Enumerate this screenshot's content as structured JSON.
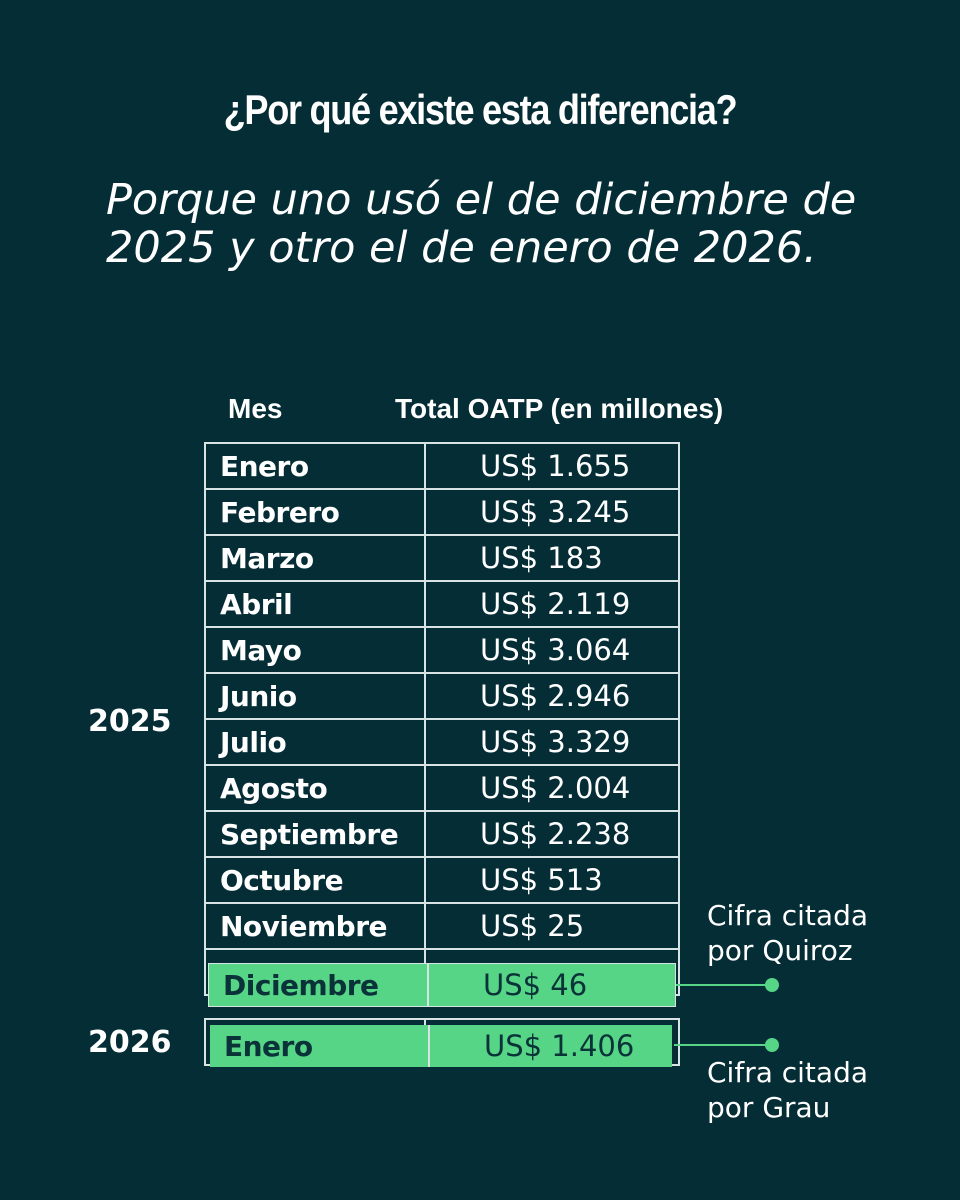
{
  "title": "¿Por qué existe esta diferencia?",
  "subtitle": "Porque uno usó el de diciembre de 2025 y otro el de enero de 2026.",
  "table": {
    "col_month": "Mes",
    "col_total": "Total OATP (en millones)",
    "year_2025": "2025",
    "year_2026": "2026",
    "rows_2025": [
      {
        "month": "Enero",
        "value": "US$ 1.655"
      },
      {
        "month": "Febrero",
        "value": "US$ 3.245"
      },
      {
        "month": "Marzo",
        "value": "US$ 183"
      },
      {
        "month": "Abril",
        "value": "US$ 2.119"
      },
      {
        "month": "Mayo",
        "value": "US$ 3.064"
      },
      {
        "month": "Junio",
        "value": "US$ 2.946"
      },
      {
        "month": "Julio",
        "value": "US$ 3.329"
      },
      {
        "month": "Agosto",
        "value": "US$ 2.004"
      },
      {
        "month": "Septiembre",
        "value": "US$ 2.238"
      },
      {
        "month": "Octubre",
        "value": "US$ 513"
      },
      {
        "month": "Noviembre",
        "value": "US$ 25"
      },
      {
        "month": "Diciembre",
        "value": "US$ 46"
      }
    ],
    "rows_2026": [
      {
        "month": "Enero",
        "value": "US$ 1.406"
      }
    ]
  },
  "annotations": {
    "quiroz": "Cifra citada por Quiroz",
    "grau": "Cifra citada por Grau"
  },
  "colors": {
    "background": "#042d35",
    "highlight": "#55d585",
    "text": "#ffffff",
    "border": "#d8e3e4"
  }
}
